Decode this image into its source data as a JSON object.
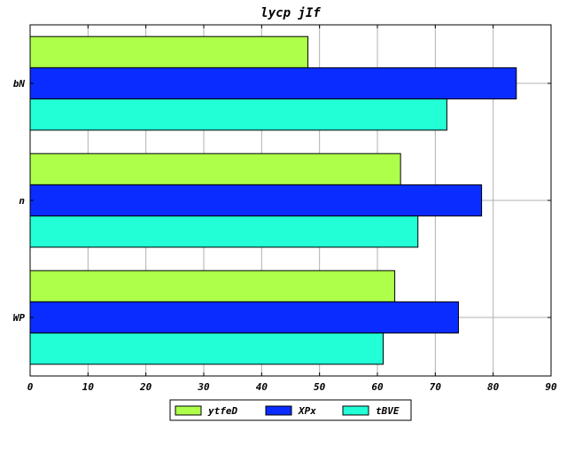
{
  "chart_data": {
    "type": "bar",
    "orientation": "horizontal",
    "title": "lycp jIf",
    "xlabel": "",
    "ylabel": "",
    "categories": [
      "bN",
      "n",
      "WP"
    ],
    "series": [
      {
        "name": "ytfeD",
        "values": [
          48,
          64,
          63
        ],
        "color": "#adff4a"
      },
      {
        "name": "XPx",
        "values": [
          84,
          78,
          74
        ],
        "color": "#0a2cff"
      },
      {
        "name": "tBVE",
        "values": [
          72,
          67,
          61
        ],
        "color": "#22ffd6"
      }
    ],
    "xlim": [
      0,
      90
    ],
    "xticks": [
      "0",
      "10",
      "20",
      "30",
      "40",
      "50",
      "60",
      "70",
      "80",
      "90"
    ],
    "grid": true,
    "legend_position": "bottom-center"
  }
}
